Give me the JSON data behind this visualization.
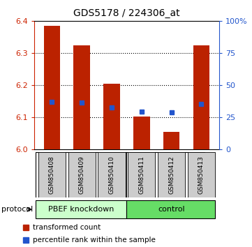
{
  "title": "GDS5178 / 224306_at",
  "samples": [
    "GSM850408",
    "GSM850409",
    "GSM850410",
    "GSM850411",
    "GSM850412",
    "GSM850413"
  ],
  "red_bar_tops": [
    6.385,
    6.325,
    6.205,
    6.103,
    6.055,
    6.325
  ],
  "blue_marker_y": [
    6.148,
    6.145,
    6.13,
    6.118,
    6.115,
    6.142
  ],
  "ymin": 6.0,
  "ymax": 6.4,
  "yticks": [
    6.0,
    6.1,
    6.2,
    6.3,
    6.4
  ],
  "right_yticks": [
    0,
    25,
    50,
    75,
    100
  ],
  "right_yticklabels": [
    "0",
    "25",
    "50",
    "75",
    "100%"
  ],
  "bar_width": 0.55,
  "bar_color": "#bb2200",
  "marker_color": "#2255cc",
  "group1_label": "PBEF knockdown",
  "group2_label": "control",
  "group1_bg": "#ccffcc",
  "group2_bg": "#66dd66",
  "sample_box_bg": "#cccccc",
  "protocol_label": "protocol",
  "legend_red": "transformed count",
  "legend_blue": "percentile rank within the sample",
  "left_axis_color": "#cc2200",
  "right_axis_color": "#2255cc",
  "grid_dotted": [
    6.1,
    6.2,
    6.3
  ]
}
